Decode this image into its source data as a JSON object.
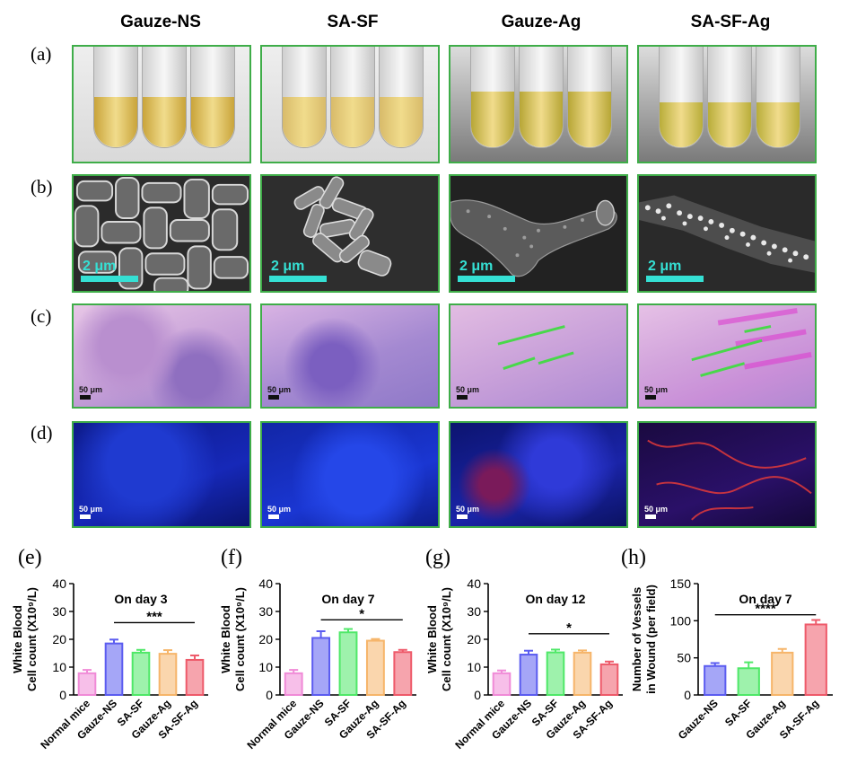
{
  "columns": [
    "Gauze-NS",
    "SA-SF",
    "Gauze-Ag",
    "SA-SF-Ag"
  ],
  "row_labels": [
    "(a)",
    "(b)",
    "(c)",
    "(d)"
  ],
  "sem_scale": "2 μm",
  "micro_scale": "50 μm",
  "tube_colors": [
    {
      "liquid": "#c9a43a",
      "level": 0.5
    },
    {
      "liquid": "#d8bb6a",
      "level": 0.5
    },
    {
      "liquid": "#b7a636",
      "level": 0.55
    },
    {
      "liquid": "#b9ad3a",
      "level": 0.45
    }
  ],
  "chart_data": [
    {
      "panel": "(e)",
      "type": "bar",
      "title": "On day 3",
      "ylabel": "White Blood Cell count (X10⁹/L)",
      "ylim": [
        0,
        40
      ],
      "yticks": [
        0,
        10,
        20,
        30,
        40
      ],
      "categories": [
        "Normal mice",
        "Gauze-NS",
        "SA-SF",
        "Gauze-Ag",
        "SA-SF-Ag"
      ],
      "values": [
        7.8,
        18.5,
        15.2,
        14.8,
        12.6
      ],
      "errors": [
        1.2,
        1.4,
        1.0,
        1.3,
        1.6
      ],
      "colors": [
        "#f08ad7",
        "#5b5cf0",
        "#4fe868",
        "#f6b56a",
        "#ee5a6a"
      ],
      "significance": {
        "label": "***",
        "from": 1,
        "to": 4,
        "y": 26
      }
    },
    {
      "panel": "(f)",
      "type": "bar",
      "title": "On day 7",
      "ylabel": "White Blood Cell count (X10⁹/L)",
      "ylim": [
        0,
        40
      ],
      "yticks": [
        0,
        10,
        20,
        30,
        40
      ],
      "categories": [
        "Normal mice",
        "Gauze-NS",
        "SA-SF",
        "Gauze-Ag",
        "SA-SF-Ag"
      ],
      "values": [
        7.8,
        20.5,
        22.5,
        19.5,
        15.4
      ],
      "errors": [
        1.2,
        2.4,
        1.2,
        0.6,
        0.8
      ],
      "colors": [
        "#f08ad7",
        "#5b5cf0",
        "#4fe868",
        "#f6b56a",
        "#ee5a6a"
      ],
      "significance": {
        "label": "*",
        "from": 1,
        "to": 4,
        "y": 27
      }
    },
    {
      "panel": "(g)",
      "type": "bar",
      "title": "On day 12",
      "ylabel": "White Blood Cell count (X10⁹/L)",
      "ylim": [
        0,
        40
      ],
      "yticks": [
        0,
        10,
        20,
        30,
        40
      ],
      "categories": [
        "Normal mice",
        "Gauze-NS",
        "SA-SF",
        "Gauze-Ag",
        "SA-SF-Ag"
      ],
      "values": [
        7.8,
        14.5,
        15.3,
        15.2,
        11.0
      ],
      "errors": [
        1.0,
        1.4,
        1.0,
        0.8,
        1.0
      ],
      "colors": [
        "#f08ad7",
        "#5b5cf0",
        "#4fe868",
        "#f6b56a",
        "#ee5a6a"
      ],
      "significance": {
        "label": "*",
        "from": 1,
        "to": 4,
        "y": 22
      }
    },
    {
      "panel": "(h)",
      "type": "bar",
      "title": "On day 7",
      "ylabel": "Number of Vessels in Wound (per field)",
      "ylim": [
        0,
        150
      ],
      "yticks": [
        0,
        50,
        100,
        150
      ],
      "categories": [
        "Gauze-NS",
        "SA-SF",
        "Gauze-Ag",
        "SA-SF-Ag"
      ],
      "values": [
        39,
        36,
        57,
        95
      ],
      "errors": [
        4,
        8,
        5,
        6
      ],
      "colors": [
        "#5b5cf0",
        "#4fe868",
        "#f6b56a",
        "#ee5a6a"
      ],
      "significance": {
        "label": "****",
        "from": 0,
        "to": 3,
        "y": 108
      }
    }
  ]
}
